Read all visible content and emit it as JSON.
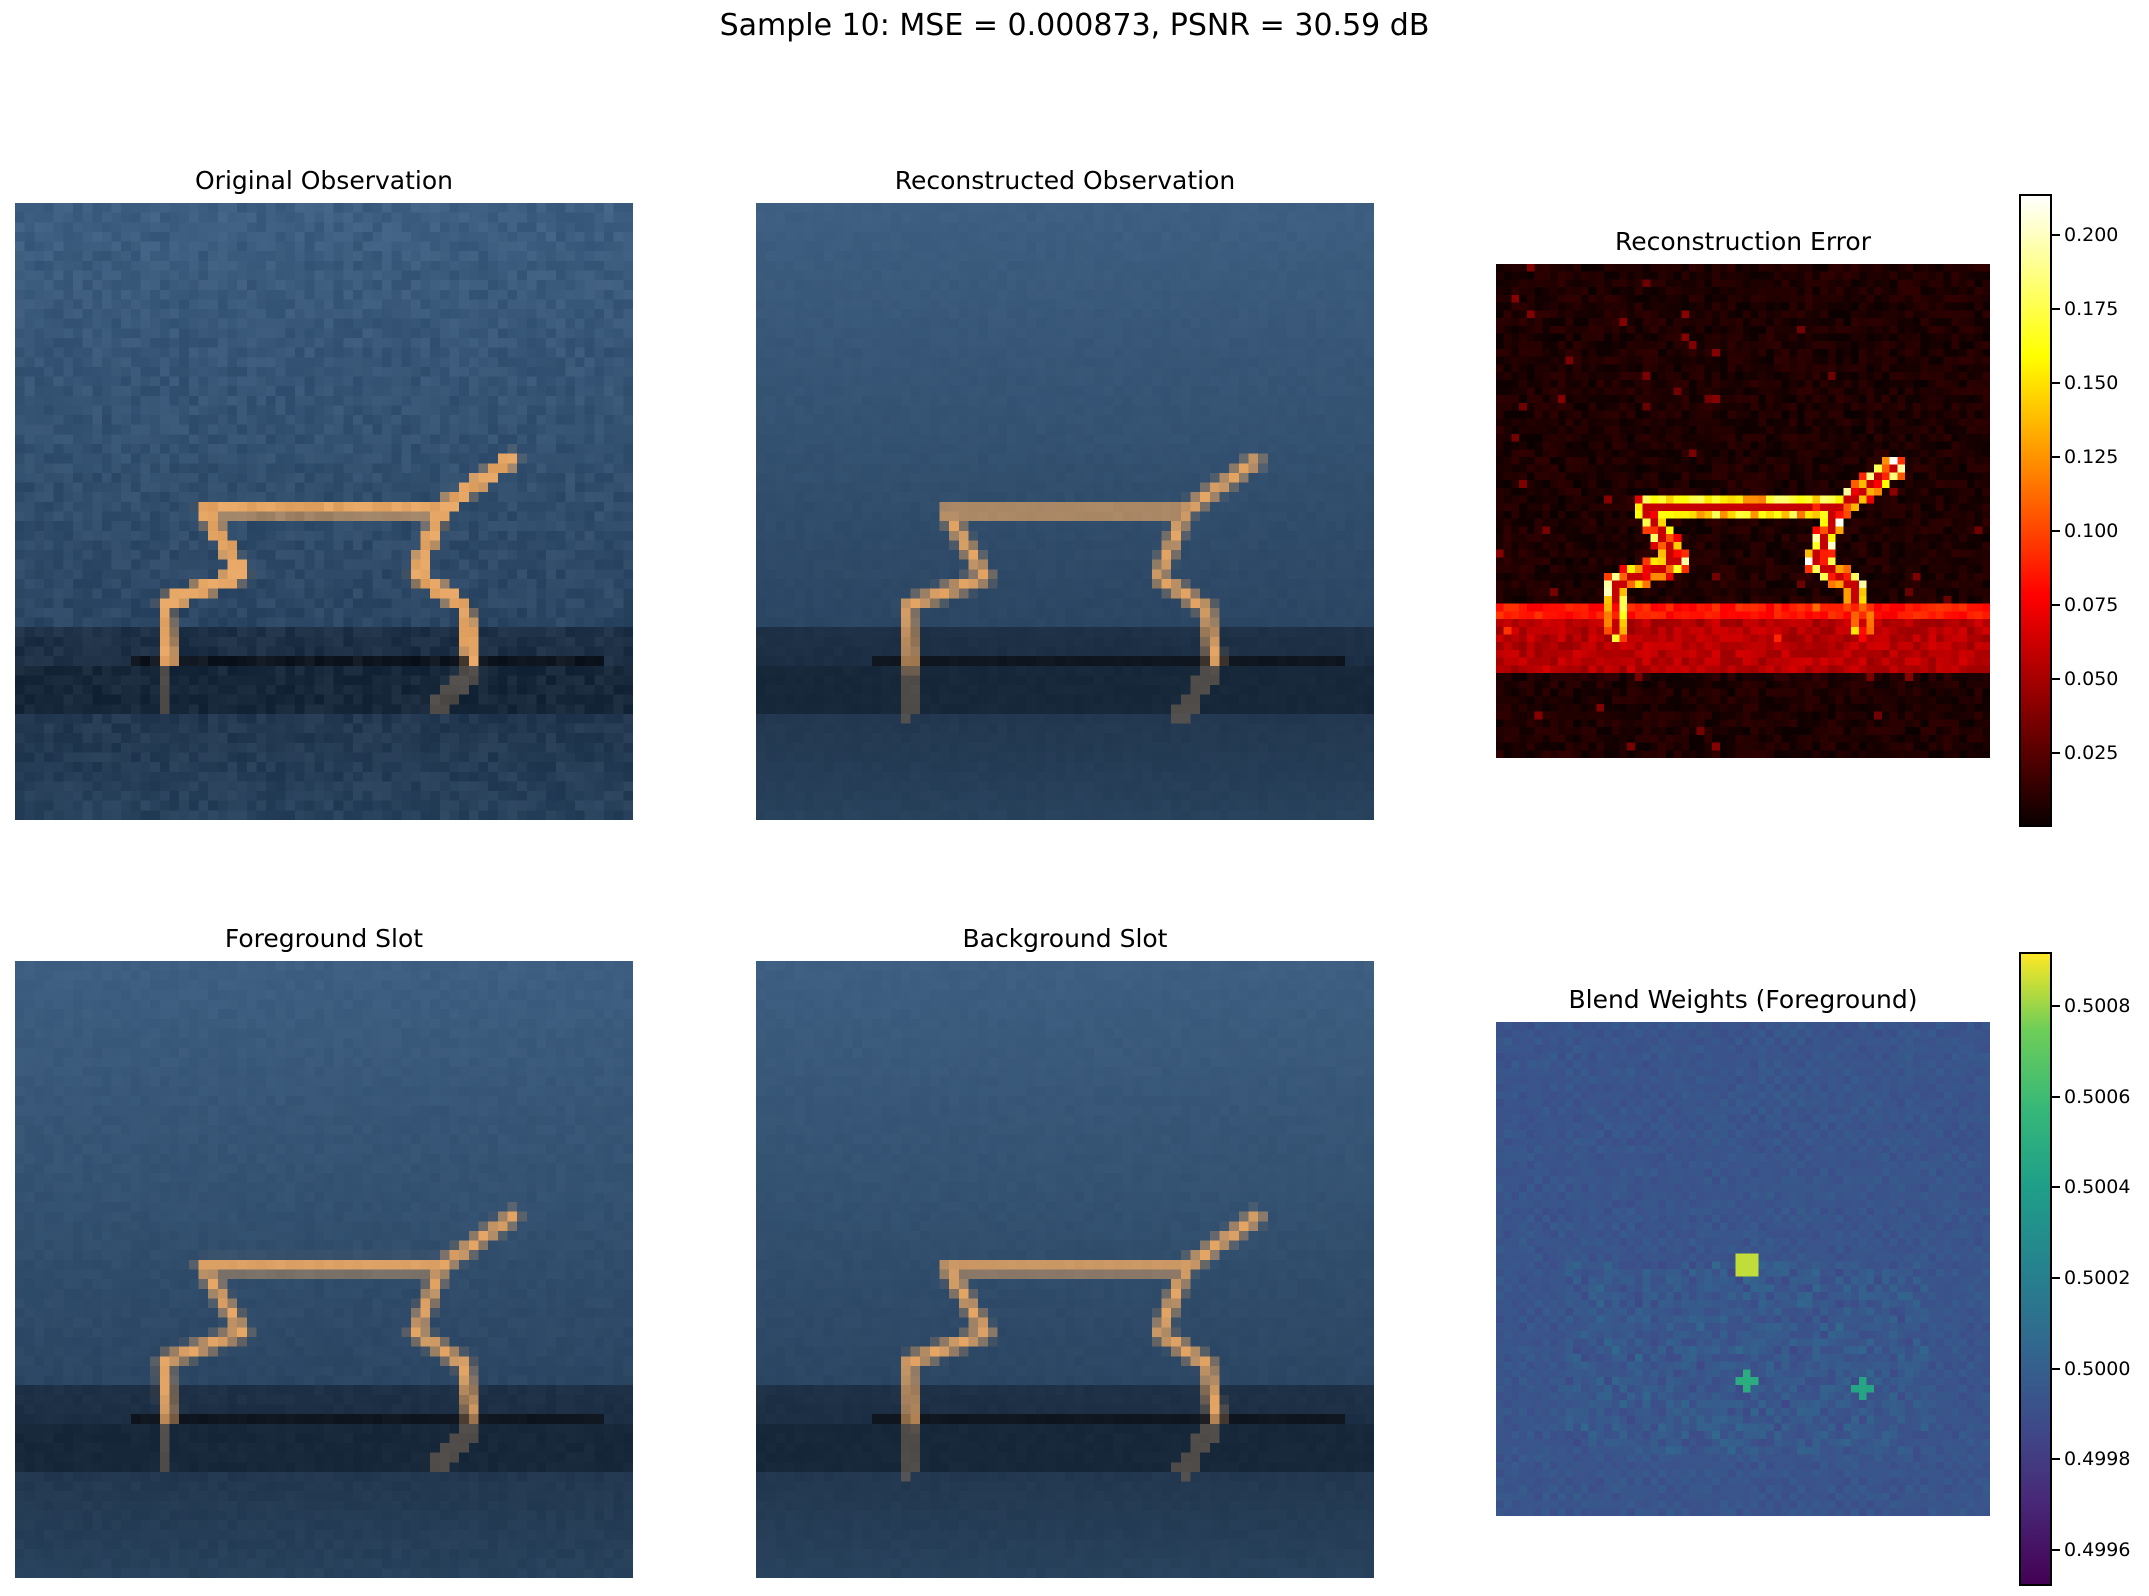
{
  "figure": {
    "suptitle": "Sample 10: MSE = 0.000873, PSNR = 30.59 dB"
  },
  "chart_data": [
    {
      "type": "heatmap",
      "title": "Original Observation",
      "content": "rgb observation image",
      "colors": {
        "sky_top": "#3e5f82",
        "sky_bottom": "#2b4663",
        "floor": "#1b2e44",
        "body": "#e3a464",
        "shadow": "#10161f"
      }
    },
    {
      "type": "heatmap",
      "title": "Reconstructed Observation",
      "content": "rgb reconstructed image"
    },
    {
      "type": "heatmap",
      "title": "Reconstruction Error",
      "colormap": "hot",
      "colorbar_ticks": [
        "0.025",
        "0.050",
        "0.075",
        "0.100",
        "0.125",
        "0.150",
        "0.175",
        "0.200"
      ],
      "range": [
        0.0,
        0.214
      ]
    },
    {
      "type": "heatmap",
      "title": "Foreground Slot",
      "content": "rgb foreground slot image"
    },
    {
      "type": "heatmap",
      "title": "Background Slot",
      "content": "rgb background slot image"
    },
    {
      "type": "heatmap",
      "title": "Blend Weights (Foreground)",
      "colormap": "viridis",
      "colorbar_ticks": [
        "0.4996",
        "0.4998",
        "0.5000",
        "0.5002",
        "0.5004",
        "0.5006",
        "0.5008"
      ],
      "range": [
        0.49952,
        0.50092
      ]
    }
  ]
}
